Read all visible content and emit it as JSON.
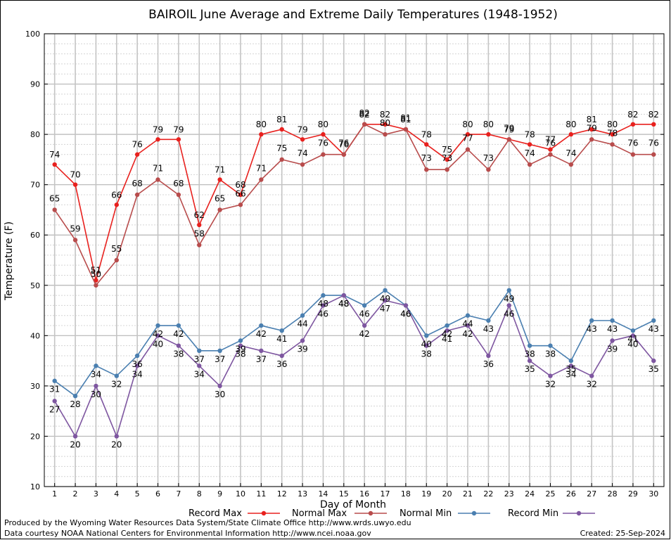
{
  "chart_data": {
    "type": "line",
    "title": "BAIROIL June Average and Extreme Daily Temperatures (1948-1952)",
    "xlabel": "Day of Month",
    "ylabel": "Temperature (F)",
    "xlim": [
      1,
      30
    ],
    "ylim": [
      10,
      100
    ],
    "x": [
      1,
      2,
      3,
      4,
      5,
      6,
      7,
      8,
      9,
      10,
      11,
      12,
      13,
      14,
      15,
      16,
      17,
      18,
      19,
      20,
      21,
      22,
      23,
      24,
      25,
      26,
      27,
      28,
      29,
      30
    ],
    "yticks": [
      10,
      20,
      30,
      40,
      50,
      60,
      70,
      80,
      90,
      100
    ],
    "grid": true,
    "legend_position": "bottom",
    "series": [
      {
        "name": "Record Max",
        "color": "#e8211e",
        "values": [
          74,
          70,
          51,
          66,
          76,
          79,
          79,
          62,
          71,
          68,
          80,
          81,
          79,
          80,
          76,
          82,
          82,
          81,
          78,
          75,
          80,
          80,
          79,
          78,
          77,
          80,
          81,
          80,
          82,
          82
        ]
      },
      {
        "name": "Normal Max",
        "color": "#b84c4c",
        "values": [
          65,
          59,
          50,
          55,
          68,
          71,
          68,
          58,
          65,
          66,
          71,
          75,
          74,
          76,
          76,
          82,
          80,
          81,
          73,
          73,
          77,
          73,
          79,
          74,
          76,
          74,
          79,
          78,
          76,
          76
        ]
      },
      {
        "name": "Normal Min",
        "color": "#4a7fb0",
        "values": [
          31,
          28,
          34,
          32,
          36,
          42,
          42,
          37,
          37,
          39,
          42,
          41,
          44,
          48,
          48,
          46,
          49,
          46,
          40,
          42,
          44,
          43,
          49,
          38,
          38,
          35,
          43,
          43,
          41,
          43
        ]
      },
      {
        "name": "Record Min",
        "color": "#7e56a0",
        "values": [
          27,
          20,
          30,
          20,
          34,
          40,
          38,
          34,
          30,
          38,
          37,
          36,
          39,
          46,
          48,
          42,
          47,
          46,
          38,
          41,
          42,
          36,
          46,
          35,
          32,
          34,
          32,
          39,
          40,
          35
        ]
      }
    ]
  },
  "footer": {
    "produced_by": "Produced by the Wyoming Water Resources Data System/State Climate Office http://www.wrds.uwyo.edu",
    "data_courtesy": "Data courtesy NOAA National Centers for Environmental Information http://www.ncei.noaa.gov",
    "created": "Created:  25-Sep-2024"
  }
}
